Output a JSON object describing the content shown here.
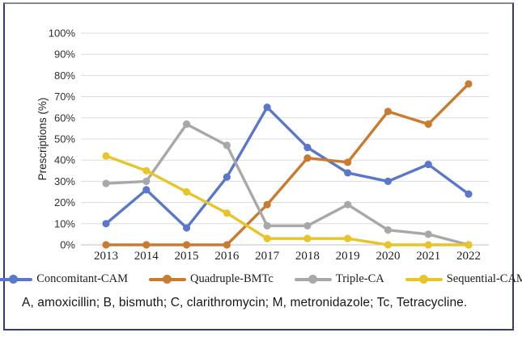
{
  "figure": {
    "border_color": "#353b6e",
    "background": "#ffffff"
  },
  "chart_data": {
    "type": "line",
    "title": "",
    "xlabel": "",
    "ylabel": "Prescriptions (%)",
    "categories": [
      "2013",
      "2014",
      "2015",
      "2016",
      "2017",
      "2018",
      "2019",
      "2020",
      "2021",
      "2022"
    ],
    "yticks": [
      "0%",
      "10%",
      "20%",
      "30%",
      "40%",
      "50%",
      "60%",
      "70%",
      "80%",
      "90%",
      "100%"
    ],
    "ylim": [
      0,
      100
    ],
    "ytick_step": 10,
    "grid": true,
    "legend_position": "bottom",
    "series": [
      {
        "name": "Concomitant-CAM",
        "color": "#5b77c9",
        "values": [
          10,
          26,
          8,
          32,
          65,
          46,
          34,
          30,
          38,
          24
        ]
      },
      {
        "name": "Quadruple-BMTc",
        "color": "#c97b2f",
        "values": [
          0,
          0,
          0,
          0,
          19,
          41,
          39,
          63,
          57,
          76
        ]
      },
      {
        "name": "Triple-CA",
        "color": "#a8a8a8",
        "values": [
          29,
          30,
          57,
          47,
          9,
          9,
          19,
          7,
          5,
          0
        ]
      },
      {
        "name": "Sequential-CAM",
        "color": "#e9c429",
        "values": [
          42,
          35,
          25,
          15,
          3,
          3,
          3,
          0,
          0,
          0
        ]
      }
    ],
    "style": {
      "gridline_color": "#dcdcdc",
      "axis_line_color": "#c2c2c2",
      "ytick_label_color": "#303030",
      "xtick_label_color": "#1f1f1f"
    }
  },
  "footnote": "A, amoxicillin; B, bismuth; C, clarithromycin; M, metronidazole; Tc, Tetracycline."
}
